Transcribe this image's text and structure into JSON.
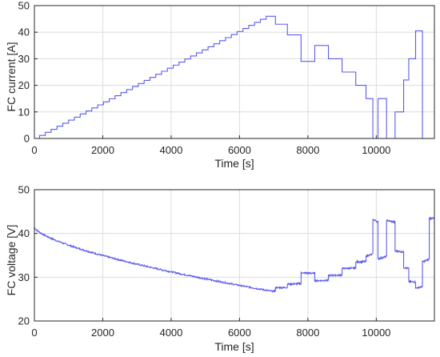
{
  "chart_data": [
    {
      "type": "line",
      "title": "",
      "xlabel": "Time [s]",
      "ylabel": "FC current [A]",
      "xlim": [
        0,
        11700
      ],
      "ylim": [
        0,
        50
      ],
      "xticks": [
        0,
        2000,
        4000,
        6000,
        8000,
        10000
      ],
      "yticks": [
        0,
        10,
        20,
        30,
        40,
        50
      ],
      "grid": true,
      "series": [
        {
          "color": "#5b5bf0",
          "step_profile": {
            "start_level": 0,
            "ramp_start": 150,
            "ramp_end": 6950,
            "ramp_steps": 40,
            "end_level": 46
          },
          "breakpoints": [
            {
              "t": 6950,
              "i": 46
            },
            {
              "t": 7050,
              "i": 43
            },
            {
              "t": 7400,
              "i": 39
            },
            {
              "t": 7800,
              "i": 29
            },
            {
              "t": 8200,
              "i": 35
            },
            {
              "t": 8600,
              "i": 30
            },
            {
              "t": 9000,
              "i": 25
            },
            {
              "t": 9400,
              "i": 20
            },
            {
              "t": 9700,
              "i": 15
            },
            {
              "t": 9900,
              "i": 0
            },
            {
              "t": 10050,
              "i": 15
            },
            {
              "t": 10300,
              "i": 0
            },
            {
              "t": 10550,
              "i": 10
            },
            {
              "t": 10800,
              "i": 22
            },
            {
              "t": 10950,
              "i": 30
            },
            {
              "t": 11150,
              "i": 40.5
            },
            {
              "t": 11350,
              "i": 0
            },
            {
              "t": 11700,
              "i": 0
            }
          ]
        }
      ]
    },
    {
      "type": "line",
      "title": "",
      "xlabel": "Time [s]",
      "ylabel": "FC voltage [V]",
      "xlim": [
        0,
        11700
      ],
      "ylim": [
        20,
        50
      ],
      "xticks": [
        0,
        2000,
        4000,
        6000,
        8000,
        10000
      ],
      "yticks": [
        20,
        30,
        40,
        50
      ],
      "grid": true,
      "series": [
        {
          "color": "#5b5bf0",
          "ramp_voltage": {
            "v_start": 41.5,
            "v_end": 26.8,
            "exponent": 0.65
          },
          "noise_amplitude": 0.18,
          "recovery_points": [
            {
              "t": 6950,
              "v": 26.8
            },
            {
              "t": 7050,
              "v": 27.6
            },
            {
              "t": 7400,
              "v": 28.4
            },
            {
              "t": 7800,
              "v": 31.0
            },
            {
              "t": 8200,
              "v": 29.2
            },
            {
              "t": 8600,
              "v": 30.4
            },
            {
              "t": 9000,
              "v": 32.0
            },
            {
              "t": 9400,
              "v": 33.5
            },
            {
              "t": 9700,
              "v": 34.8
            },
            {
              "t": 9900,
              "v": 43.2
            },
            {
              "t": 10050,
              "v": 34.2
            },
            {
              "t": 10300,
              "v": 43.0
            },
            {
              "t": 10550,
              "v": 36.0
            },
            {
              "t": 10800,
              "v": 32.2
            },
            {
              "t": 10950,
              "v": 29.0
            },
            {
              "t": 11150,
              "v": 27.5
            },
            {
              "t": 11350,
              "v": 33.5
            },
            {
              "t": 11550,
              "v": 43.5
            },
            {
              "t": 11700,
              "v": 42.6
            }
          ]
        }
      ]
    }
  ]
}
